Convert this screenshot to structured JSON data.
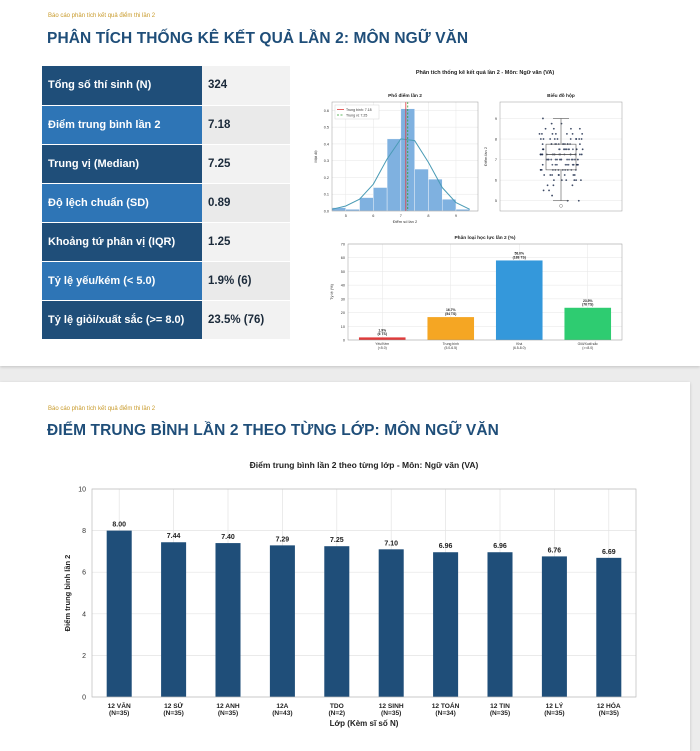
{
  "slide1": {
    "kicker": "Báo cáo phân tích kết quả điểm thi lần 2",
    "title": "PHÂN TÍCH THỐNG KÊ KẾT QUẢ LẦN 2: MÔN NGỮ VĂN",
    "stats": [
      {
        "label": "Tổng số thí sinh (N)",
        "value": "324"
      },
      {
        "label": "Điểm trung bình lần 2",
        "value": "7.18"
      },
      {
        "label": "Trung vị (Median)",
        "value": "7.25"
      },
      {
        "label": "Độ lệch chuẩn (SD)",
        "value": "0.89"
      },
      {
        "label": "Khoảng tứ phân vị (IQR)",
        "value": "1.25"
      },
      {
        "label": "Tỷ lệ yếu/kém (< 5.0)",
        "value": "1.9% (6)"
      },
      {
        "label": "Tỷ lệ giỏi/xuất sắc (>= 8.0)",
        "value": "23.5% (76)"
      }
    ],
    "figure_title": "Phân tích thống kê kết quả lần 2 - Môn: Ngữ văn (VA)"
  },
  "slide2": {
    "kicker": "Báo cáo phân tích kết quả điểm thi lần 2",
    "title": "ĐIỂM TRUNG BÌNH LẦN 2 THEO TỪNG LỚP: MÔN NGỮ VĂN"
  },
  "colors": {
    "navy": "#1f4e79",
    "blue": "#2e75b6",
    "bar": "#1f4e79",
    "hist": "#7fb1e0",
    "kde": "#4a9bb5",
    "red": "#e03b3b",
    "orange": "#f5a623",
    "sky": "#3498db",
    "green": "#2ecc71"
  },
  "chart_data": [
    {
      "type": "bar",
      "title": "Phổ điểm lần 2",
      "xlabel": "Điểm số lần 2",
      "ylabel": "Mật độ",
      "bin_edges": [
        4.5,
        5.0,
        5.5,
        6.0,
        6.5,
        7.0,
        7.5,
        8.0,
        8.5,
        9.0,
        9.5
      ],
      "values": [
        0.02,
        0.01,
        0.08,
        0.14,
        0.43,
        0.61,
        0.25,
        0.19,
        0.07,
        0.01
      ],
      "kde_x": [
        4.5,
        5.0,
        5.5,
        6.0,
        6.5,
        7.0,
        7.5,
        8.0,
        8.5,
        9.0,
        9.5
      ],
      "kde_y": [
        0.01,
        0.03,
        0.07,
        0.16,
        0.31,
        0.43,
        0.42,
        0.29,
        0.14,
        0.05,
        0.01
      ],
      "mean": 7.18,
      "median": 7.25,
      "legend": [
        "Trung bình: 7.18",
        "Trung vị: 7.25"
      ],
      "xticks": [
        "5",
        "6",
        "7",
        "8",
        "9"
      ],
      "xlim": [
        4.5,
        9.8
      ],
      "ylim": [
        0,
        0.65
      ],
      "yticks": [
        "0.0",
        "0.1",
        "0.2",
        "0.3",
        "0.4",
        "0.5",
        "0.6"
      ]
    },
    {
      "type": "scatter",
      "title": "Biểu đồ hộp",
      "ylabel": "Điểm lần 2",
      "ylim": [
        4.5,
        9.8
      ],
      "yticks": [
        "5",
        "6",
        "7",
        "8",
        "9"
      ],
      "box": {
        "q1": 6.5,
        "median": 7.25,
        "q3": 7.75,
        "whisker_low": 5.0,
        "whisker_high": 9.0,
        "outliers": [
          4.75
        ]
      }
    },
    {
      "type": "bar",
      "title": "Phân loại học lực lần 2 (%)",
      "ylabel": "Tỷ lệ (%)",
      "categories": [
        "Yếu/Kém\n(<5.0)",
        "Trung bình\n(5.0-6.5)",
        "Khá\n(6.5-8.0)",
        "Giỏi/Xuất sắc\n(>=8.0)"
      ],
      "values": [
        1.9,
        16.7,
        58.0,
        23.5
      ],
      "labels": [
        "1.9%\n(6 TS)",
        "16.7%\n(54 TS)",
        "58.0%\n(188 TS)",
        "23.5%\n(76 TS)"
      ],
      "ylim": [
        0,
        70
      ],
      "yticks": [
        "0",
        "10",
        "20",
        "30",
        "40",
        "50",
        "60",
        "70"
      ]
    },
    {
      "type": "bar",
      "title": "Điểm trung bình lần 2 theo từng lớp - Môn: Ngữ văn (VA)",
      "xlabel": "Lớp (Kèm sĩ số N)",
      "ylabel": "Điểm trung bình lần 2",
      "categories": [
        "12 VĂN\n(N=35)",
        "12 SỬ\n(N=35)",
        "12 ANH\n(N=35)",
        "12A\n(N=43)",
        "TDO\n(N=2)",
        "12 SINH\n(N=35)",
        "12 TOÁN\n(N=34)",
        "12 TIN\n(N=35)",
        "12 LÝ\n(N=35)",
        "12 HÓA\n(N=35)"
      ],
      "values": [
        8.0,
        7.44,
        7.4,
        7.29,
        7.25,
        7.1,
        6.96,
        6.96,
        6.76,
        6.69
      ],
      "labels": [
        "8.00",
        "7.44",
        "7.40",
        "7.29",
        "7.25",
        "7.10",
        "6.96",
        "6.96",
        "6.76",
        "6.69"
      ],
      "ylim": [
        0,
        10
      ],
      "yticks": [
        "0",
        "2",
        "4",
        "6",
        "8",
        "10"
      ]
    }
  ]
}
